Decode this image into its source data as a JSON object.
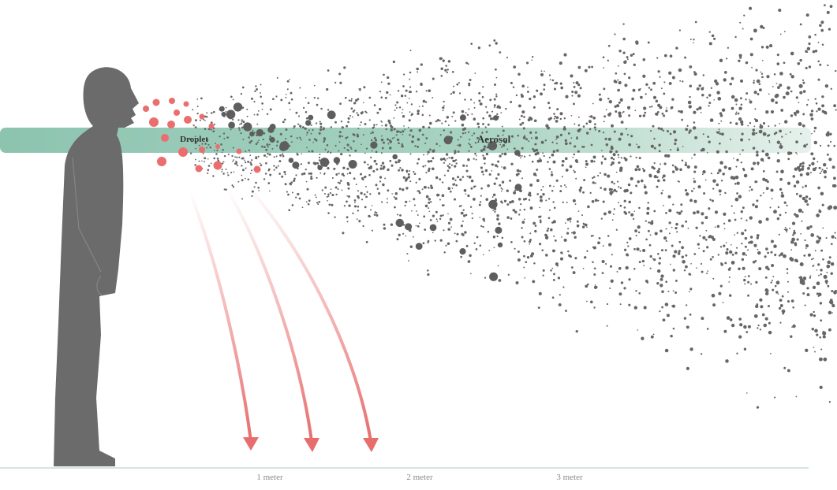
{
  "labels": {
    "droplet": "Droplet",
    "aerosol": "Aerosol"
  },
  "scale": [
    {
      "label": "1 meter"
    },
    {
      "label": "2 meter"
    },
    {
      "label": "3 meter"
    }
  ]
}
